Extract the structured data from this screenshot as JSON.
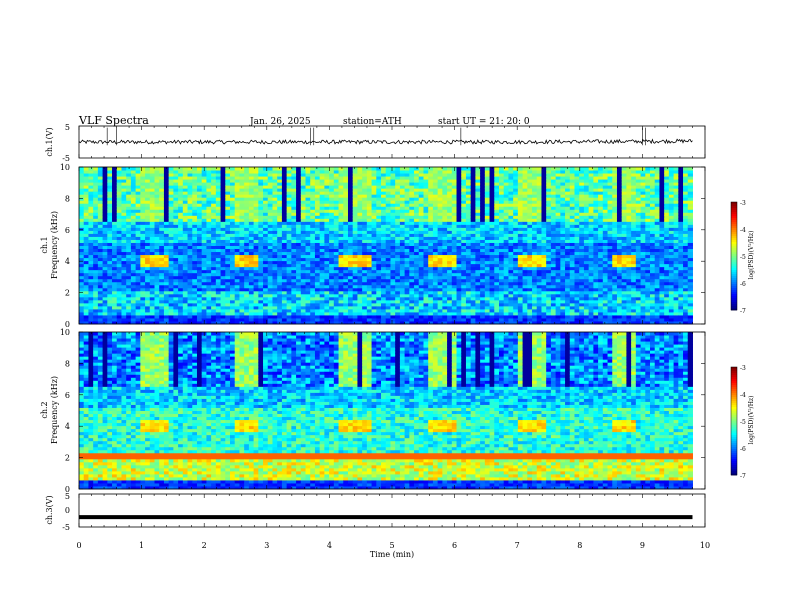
{
  "header": {
    "title": "VLF  Spectra",
    "date": "Jan. 26, 2025",
    "station": "station=ATH",
    "start": "start  UT  =   21: 20: 0"
  },
  "chart_data": [
    {
      "type": "line",
      "id": "ch1-waveform",
      "ylabel": "ch.1(V)",
      "ylim": [
        -5,
        5
      ],
      "yticks": [
        5,
        -5
      ],
      "x": [
        0,
        1,
        2,
        3,
        4,
        5,
        6,
        7,
        8,
        9,
        9.8
      ],
      "values": [
        0,
        0,
        0,
        0,
        0,
        0,
        0,
        0,
        0.1,
        0.2,
        0.3
      ]
    },
    {
      "type": "heatmap",
      "id": "ch1-spectrogram",
      "ylabel_top": "ch.1",
      "ylabel": "Frequency  (kHz)",
      "ylim": [
        0,
        10
      ],
      "yticks": [
        0,
        2,
        4,
        6,
        8,
        10
      ],
      "xlim": [
        0,
        9.8
      ],
      "colorbar": {
        "label": "log(PSD)(V²/Hz)",
        "range": [
          -7,
          -3
        ],
        "ticks": [
          "-3",
          "-4",
          "-5",
          "-6",
          "-7"
        ]
      },
      "bursts_min": [
        [
          1.0,
          1.4
        ],
        [
          2.5,
          2.85
        ],
        [
          4.15,
          4.7
        ],
        [
          5.55,
          6.05
        ],
        [
          7.0,
          7.5
        ],
        [
          8.5,
          8.9
        ]
      ],
      "burst_band_khz": [
        3.6,
        4.4
      ]
    },
    {
      "type": "heatmap",
      "id": "ch2-spectrogram",
      "ylabel_top": "ch.2",
      "ylabel": "Frequency  (kHz)",
      "ylim": [
        0,
        10
      ],
      "yticks": [
        0,
        2,
        4,
        6,
        8,
        10
      ],
      "xlim": [
        0,
        9.8
      ],
      "colorbar": {
        "label": "log(PSD)(V²/Hz)",
        "range": [
          -7,
          -3
        ],
        "ticks": [
          "-3",
          "-4",
          "-5",
          "-6",
          "-7"
        ]
      },
      "bursts_min": [
        [
          1.0,
          1.4
        ],
        [
          2.5,
          2.85
        ],
        [
          4.15,
          4.7
        ],
        [
          5.55,
          6.05
        ],
        [
          7.0,
          7.5
        ],
        [
          8.5,
          8.9
        ]
      ],
      "burst_band_khz": [
        3.6,
        4.4
      ]
    },
    {
      "type": "line",
      "id": "ch3-waveform",
      "ylabel": "ch.3(V)",
      "ylim": [
        -5,
        5
      ],
      "yticks": [
        5,
        0,
        -5
      ],
      "x": [
        0,
        9.8
      ],
      "values": [
        -2,
        -2
      ]
    }
  ],
  "xaxis": {
    "label": "Time  (min)",
    "ticks": [
      "0",
      "1",
      "2",
      "3",
      "4",
      "5",
      "6",
      "7",
      "8",
      "9",
      "10"
    ],
    "range": [
      0,
      10
    ]
  }
}
